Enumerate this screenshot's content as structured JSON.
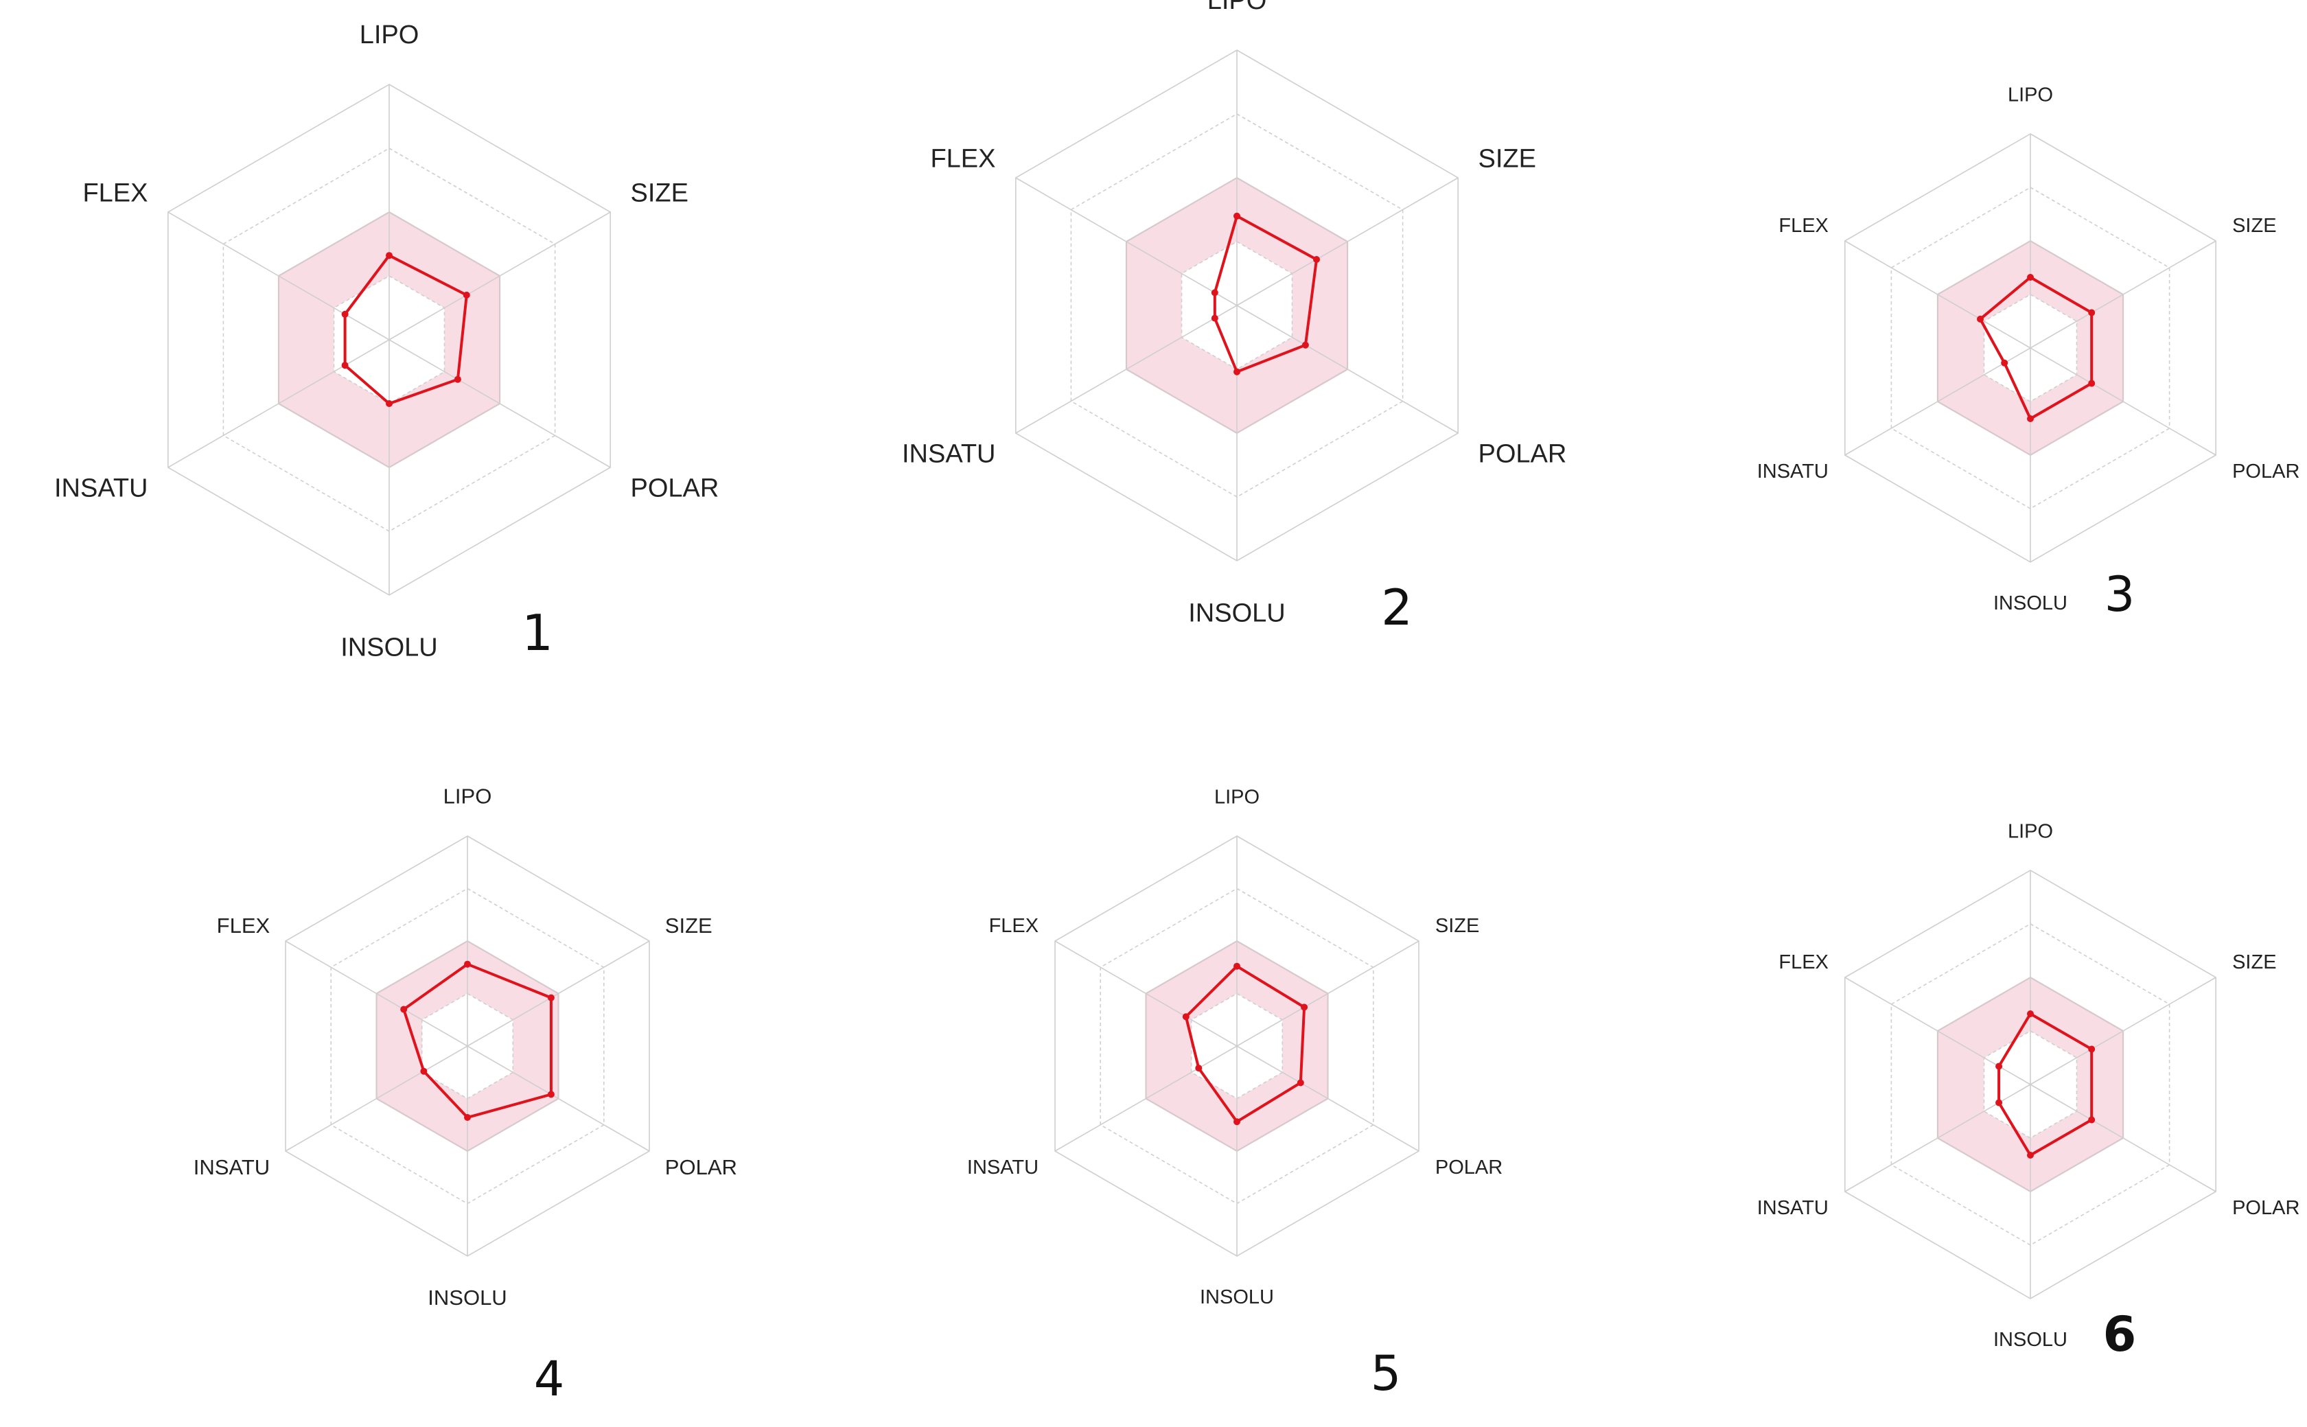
{
  "chart_data": [
    {
      "type": "radar",
      "panel_label": "1",
      "panel_label_bold": false,
      "axes": [
        "LIPO",
        "SIZE",
        "POLAR",
        "INSOLU",
        "INSATU",
        "FLEX"
      ],
      "range": [
        0,
        1
      ],
      "rings": 4,
      "optimal_band": [
        0.25,
        0.5
      ],
      "series": [
        {
          "values": [
            0.33,
            0.35,
            0.31,
            0.25,
            0.2,
            0.2
          ]
        }
      ]
    },
    {
      "type": "radar",
      "panel_label": "2",
      "panel_label_bold": false,
      "axes": [
        "LIPO",
        "SIZE",
        "POLAR",
        "INSOLU",
        "INSATU",
        "FLEX"
      ],
      "range": [
        0,
        1
      ],
      "rings": 4,
      "optimal_band": [
        0.25,
        0.5
      ],
      "series": [
        {
          "values": [
            0.35,
            0.36,
            0.31,
            0.26,
            0.1,
            0.1
          ]
        }
      ]
    },
    {
      "type": "radar",
      "panel_label": "3",
      "panel_label_bold": false,
      "axes": [
        "LIPO",
        "SIZE",
        "POLAR",
        "INSOLU",
        "INSATU",
        "FLEX"
      ],
      "range": [
        0,
        1
      ],
      "rings": 4,
      "optimal_band": [
        0.25,
        0.5
      ],
      "series": [
        {
          "values": [
            0.33,
            0.33,
            0.33,
            0.33,
            0.14,
            0.27
          ]
        }
      ]
    },
    {
      "type": "radar",
      "panel_label": "4",
      "panel_label_bold": false,
      "axes": [
        "LIPO",
        "SIZE",
        "POLAR",
        "INSOLU",
        "INSATU",
        "FLEX"
      ],
      "range": [
        0,
        1
      ],
      "rings": 4,
      "optimal_band": [
        0.25,
        0.5
      ],
      "series": [
        {
          "values": [
            0.39,
            0.46,
            0.46,
            0.34,
            0.24,
            0.35
          ]
        }
      ]
    },
    {
      "type": "radar",
      "panel_label": "5",
      "panel_label_bold": false,
      "axes": [
        "LIPO",
        "SIZE",
        "POLAR",
        "INSOLU",
        "INSATU",
        "FLEX"
      ],
      "range": [
        0,
        1
      ],
      "rings": 4,
      "optimal_band": [
        0.25,
        0.5
      ],
      "series": [
        {
          "values": [
            0.38,
            0.37,
            0.35,
            0.36,
            0.21,
            0.28
          ]
        }
      ]
    },
    {
      "type": "radar",
      "panel_label": "6",
      "panel_label_bold": true,
      "axes": [
        "LIPO",
        "SIZE",
        "POLAR",
        "INSOLU",
        "INSATU",
        "FLEX"
      ],
      "range": [
        0,
        1
      ],
      "rings": 4,
      "optimal_band": [
        0.25,
        0.5
      ],
      "series": [
        {
          "values": [
            0.33,
            0.33,
            0.33,
            0.33,
            0.17,
            0.17
          ]
        }
      ]
    }
  ],
  "colors": {
    "grid": "#cfcfcf",
    "band_fill": "#f9dde5",
    "band_stroke": "#e8a6b7",
    "series": "#e0121b",
    "label": "#222222"
  }
}
